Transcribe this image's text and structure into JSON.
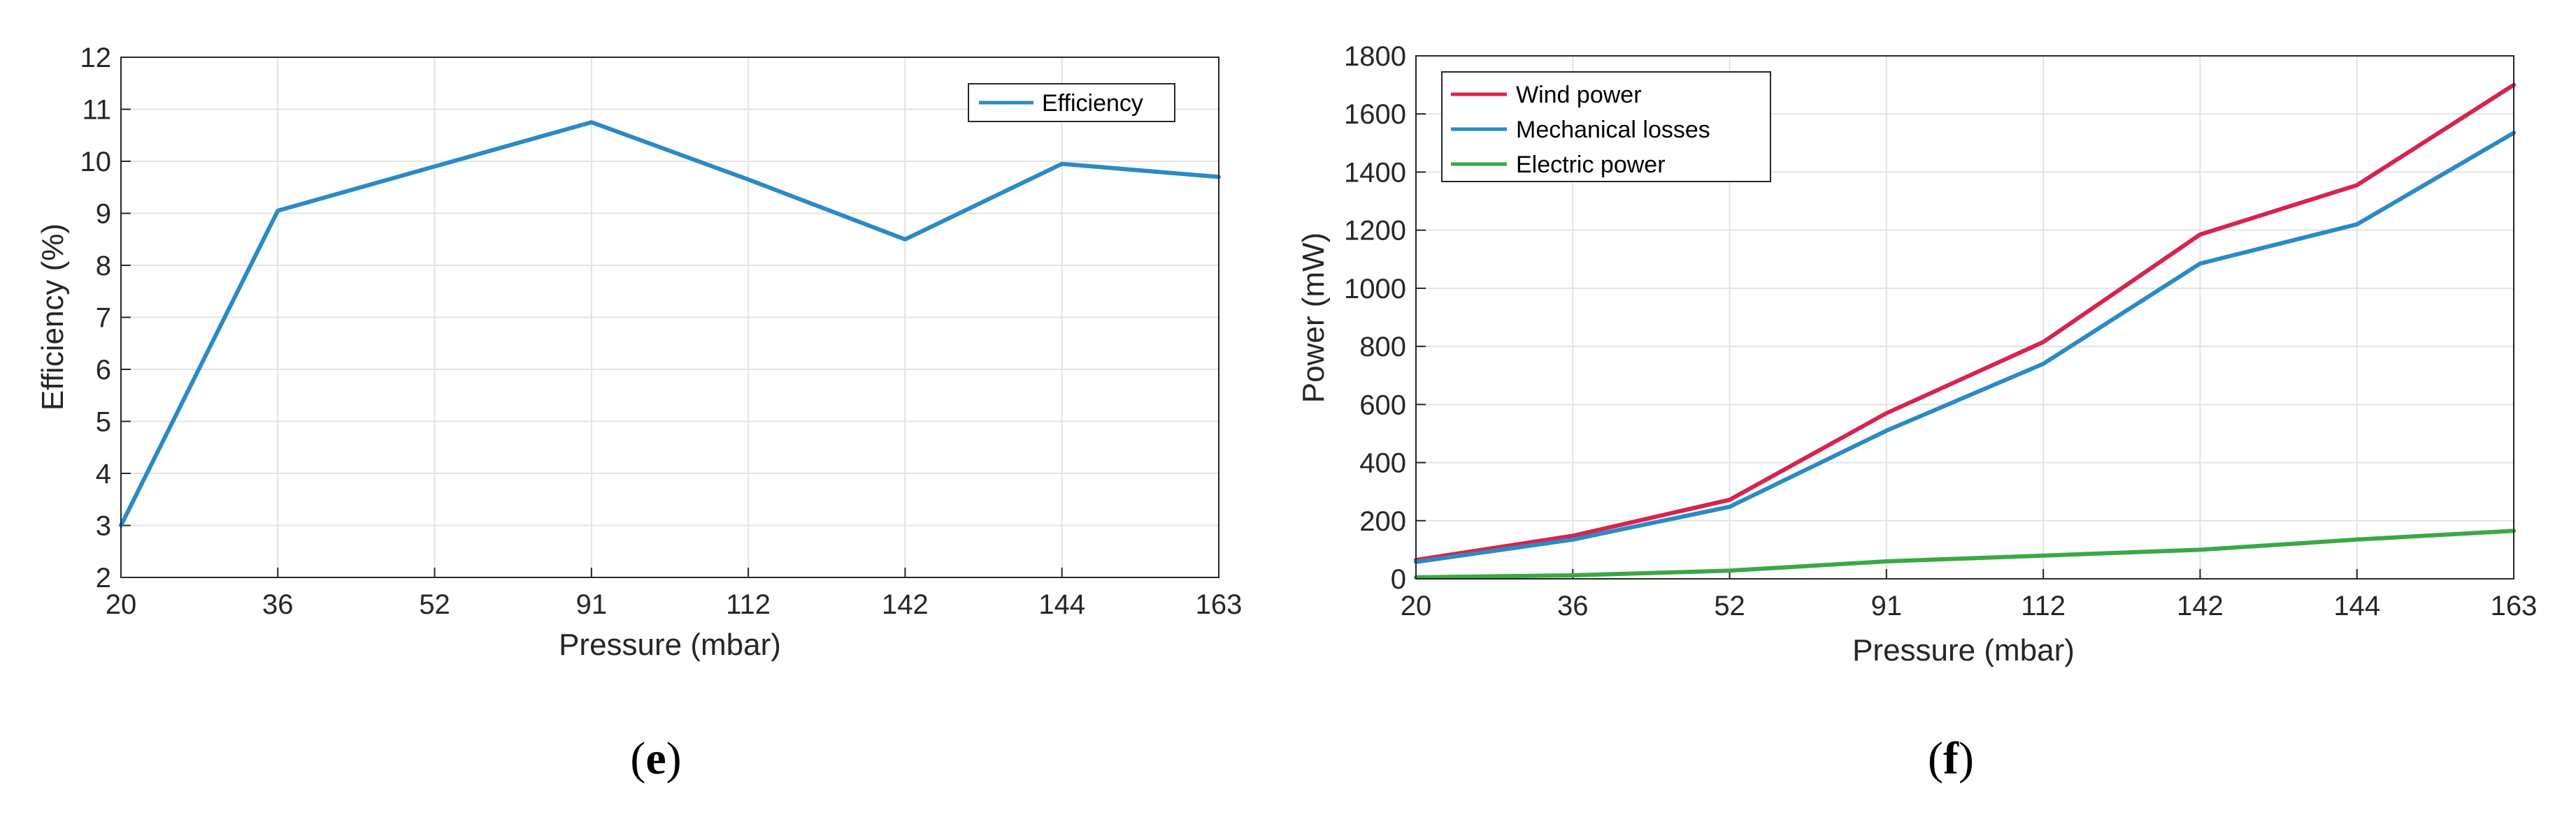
{
  "chart_data": [
    {
      "type": "line",
      "categories": [
        "20",
        "36",
        "52",
        "91",
        "112",
        "142",
        "144",
        "163"
      ],
      "series": [
        {
          "name": "Efficiency",
          "color": "#2b8ac6",
          "values": [
            3.0,
            9.05,
            9.9,
            10.75,
            9.65,
            8.5,
            9.95,
            9.7
          ]
        }
      ],
      "title": "",
      "xlabel": "Pressure (mbar)",
      "ylabel": "Efficiency (%)",
      "ylim": [
        2,
        12
      ],
      "yticks": [
        "2",
        "3",
        "4",
        "5",
        "6",
        "7",
        "8",
        "9",
        "10",
        "11",
        "12"
      ],
      "grid": true,
      "legend": "top-right",
      "caption": {
        "open": "(",
        "letter": "e",
        "close": ")"
      }
    },
    {
      "type": "line",
      "categories": [
        "20",
        "36",
        "52",
        "91",
        "112",
        "142",
        "144",
        "163"
      ],
      "series": [
        {
          "name": "Wind power",
          "color": "#d6244e",
          "values": [
            65,
            148,
            272,
            570,
            815,
            1185,
            1355,
            1700
          ]
        },
        {
          "name": "Mechanical losses",
          "color": "#2b8ac6",
          "values": [
            58,
            135,
            248,
            510,
            740,
            1085,
            1220,
            1535
          ]
        },
        {
          "name": "Electric power",
          "color": "#3aa845",
          "values": [
            5,
            12,
            28,
            60,
            80,
            100,
            135,
            165
          ]
        }
      ],
      "title": "",
      "xlabel": "Pressure (mbar)",
      "ylabel": "Power (mW)",
      "ylim": [
        0,
        1800
      ],
      "yticks": [
        "0",
        "200",
        "400",
        "600",
        "800",
        "1000",
        "1200",
        "1400",
        "1600",
        "1800"
      ],
      "grid": true,
      "legend": "top-left",
      "caption": {
        "open": "(",
        "letter": "f",
        "close": ")"
      }
    }
  ]
}
